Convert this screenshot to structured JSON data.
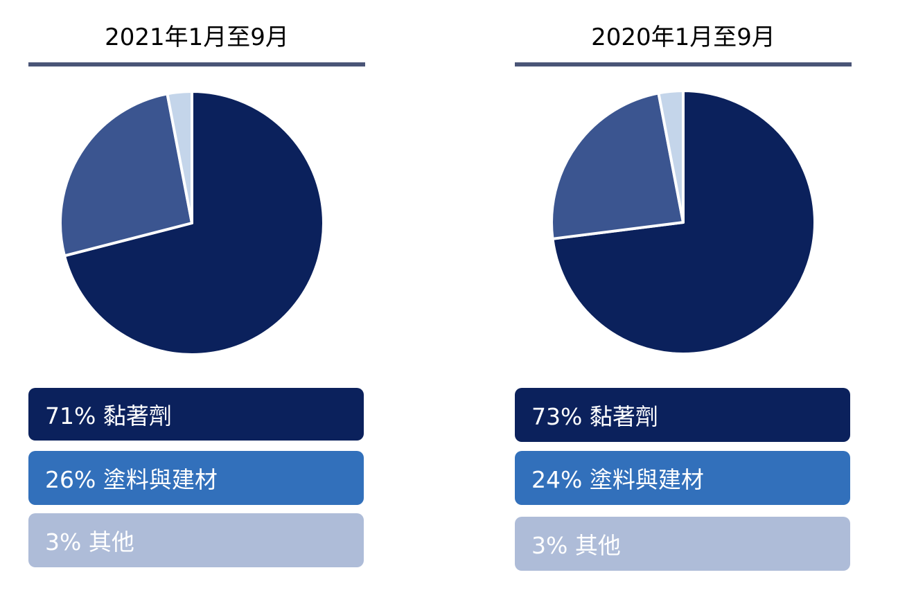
{
  "colors": {
    "title_rule": "#4a5577",
    "slice_adhesives": "#0b215c",
    "slice_coatings": "#3b5590",
    "slice_other": "#c4d5ea",
    "box_adhesives": "#0b215c",
    "box_coatings": "#3270bb",
    "box_other": "#aebcd8"
  },
  "chart_data": [
    {
      "type": "pie",
      "title": "2021年1月至9月",
      "labels": [
        "黏著劑",
        "塗料與建材",
        "其他"
      ],
      "values": [
        71,
        26,
        3
      ],
      "legend_texts": [
        "71% 黏著劑",
        "26% 塗料與建材",
        "3% 其他"
      ]
    },
    {
      "type": "pie",
      "title": "2020年1月至9月",
      "labels": [
        "黏著劑",
        "塗料與建材",
        "其他"
      ],
      "values": [
        73,
        24,
        3
      ],
      "legend_texts": [
        "73% 黏著劑",
        "24% 塗料與建材",
        "3% 其他"
      ]
    }
  ]
}
